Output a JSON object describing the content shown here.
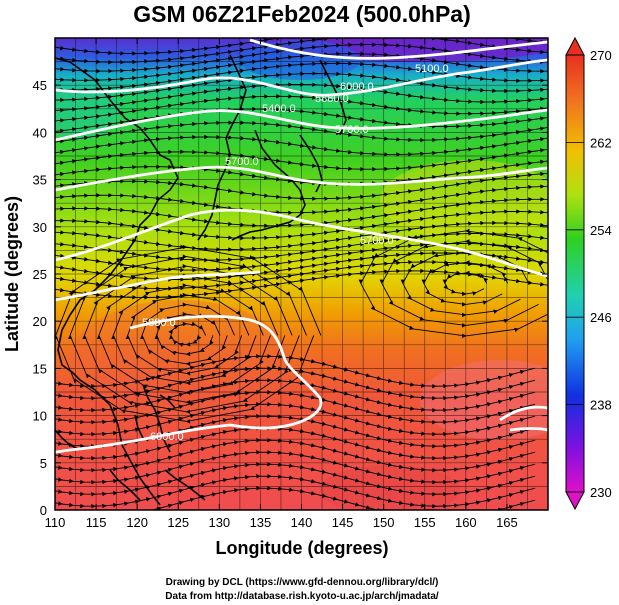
{
  "title": "GSM 06Z21Feb2024 (500.0hPa)",
  "axes": {
    "xlabel": "Longitude (degrees)",
    "ylabel": "Latitude  (degrees)",
    "x_ticks": [
      "110",
      "115",
      "120",
      "125",
      "130",
      "135",
      "140",
      "145",
      "150",
      "155",
      "160",
      "165"
    ],
    "y_ticks": [
      "0",
      "5",
      "10",
      "15",
      "20",
      "25",
      "30",
      "35",
      "40",
      "45"
    ]
  },
  "colorbar": {
    "tick_labels": [
      "270",
      "262",
      "254",
      "246",
      "238",
      "230"
    ],
    "min": 230,
    "max": 270
  },
  "contour_labels": [
    "5100.0",
    "5400.0",
    "5700.0",
    "5700.0",
    "5700.0",
    "5880.0",
    "6000.0",
    "6000.0",
    "5880.0"
  ],
  "credits": {
    "line1": "Drawing by DCL (https://www.gfd-dennou.org/library/dcl/)",
    "line2": "Data from http://database.rish.kyoto-u.ac.jp/arch/jmadata/"
  },
  "chart_data": {
    "type": "heatmap",
    "title": "GSM 06Z21Feb2024 (500.0hPa)",
    "xlabel": "Longitude (degrees)",
    "ylabel": "Latitude  (degrees)",
    "xlim": [
      110,
      170
    ],
    "ylim": [
      0,
      50
    ],
    "colorbar_range": [
      230,
      270
    ],
    "contour_levels": [
      5100,
      5400,
      5700,
      5880,
      6000
    ],
    "grid": true,
    "colors": {
      "min": "#d800c8",
      "low": "#1030e0",
      "mid": "#20e0e0",
      "green": "#30d020",
      "yellow": "#e0e000",
      "orange": "#f08020",
      "max": "#f05050"
    }
  }
}
